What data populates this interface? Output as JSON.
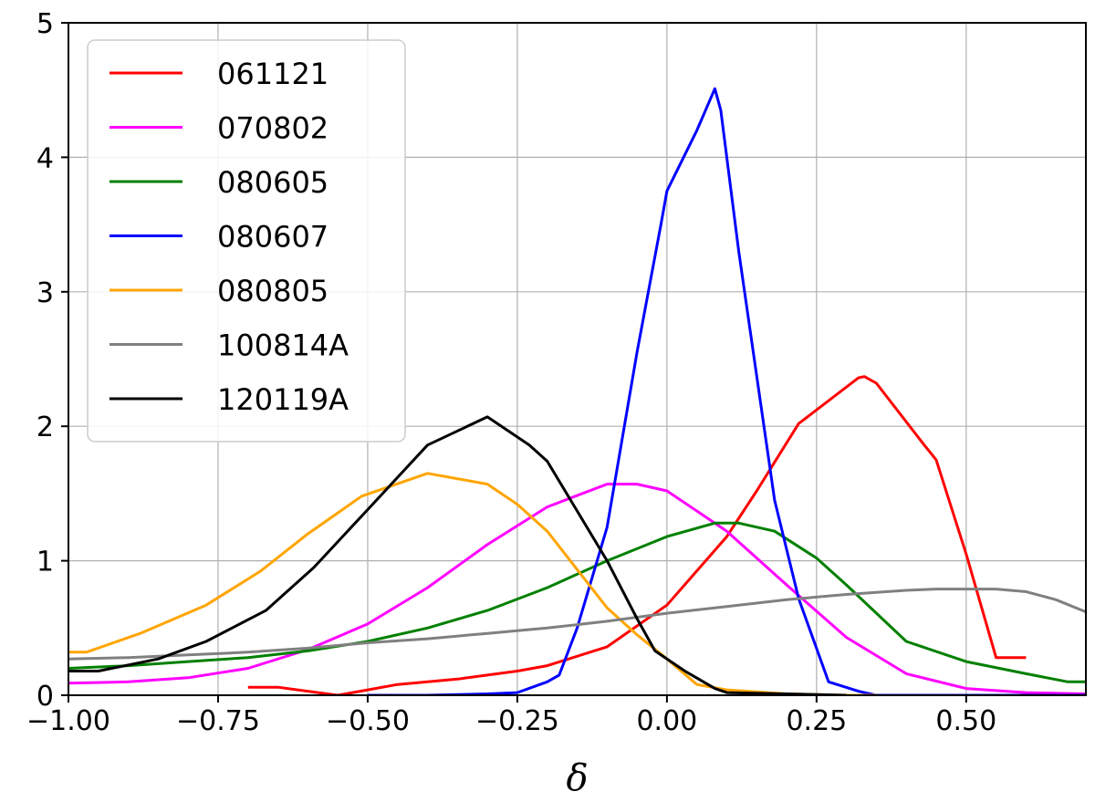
{
  "chart_data": {
    "type": "line",
    "title": "",
    "xlabel": "δ",
    "ylabel": "",
    "xlim": [
      -1.0,
      0.7
    ],
    "ylim": [
      0,
      5
    ],
    "grid": true,
    "legend_position": "top-left",
    "x_ticks": [
      "−1.00",
      "−0.75",
      "−0.50",
      "−0.25",
      "0.00",
      "0.25",
      "0.50"
    ],
    "y_ticks": [
      "0",
      "1",
      "2",
      "3",
      "4",
      "5"
    ],
    "series": [
      {
        "name": "061121",
        "color": "#ff0000",
        "x": [
          -0.7,
          -0.65,
          -0.6,
          -0.55,
          -0.5,
          -0.45,
          -0.4,
          -0.35,
          -0.3,
          -0.25,
          -0.2,
          -0.1,
          0.0,
          0.1,
          0.15,
          0.22,
          0.32,
          0.33,
          0.35,
          0.43,
          0.45,
          0.5,
          0.55,
          0.6
        ],
        "y": [
          0.06,
          0.06,
          0.03,
          0.0,
          0.04,
          0.08,
          0.1,
          0.12,
          0.15,
          0.18,
          0.22,
          0.36,
          0.67,
          1.18,
          1.52,
          2.02,
          2.36,
          2.37,
          2.32,
          1.86,
          1.75,
          1.05,
          0.28,
          0.28
        ]
      },
      {
        "name": "070802",
        "color": "#ff00ff",
        "x": [
          -1.0,
          -0.9,
          -0.8,
          -0.7,
          -0.6,
          -0.5,
          -0.4,
          -0.3,
          -0.2,
          -0.1,
          -0.05,
          0.0,
          0.1,
          0.2,
          0.3,
          0.4,
          0.5,
          0.6,
          0.7
        ],
        "y": [
          0.09,
          0.1,
          0.13,
          0.2,
          0.34,
          0.53,
          0.8,
          1.12,
          1.4,
          1.57,
          1.57,
          1.52,
          1.22,
          0.82,
          0.43,
          0.16,
          0.05,
          0.02,
          0.01
        ]
      },
      {
        "name": "080605",
        "color": "#008000",
        "x": [
          -1.0,
          -0.9,
          -0.8,
          -0.7,
          -0.6,
          -0.5,
          -0.4,
          -0.3,
          -0.2,
          -0.1,
          0.0,
          0.08,
          0.12,
          0.18,
          0.25,
          0.3,
          0.4,
          0.5,
          0.6,
          0.67,
          0.7
        ],
        "y": [
          0.2,
          0.22,
          0.25,
          0.28,
          0.33,
          0.4,
          0.5,
          0.63,
          0.8,
          1.0,
          1.18,
          1.28,
          1.28,
          1.22,
          1.02,
          0.82,
          0.4,
          0.25,
          0.16,
          0.1,
          0.1
        ]
      },
      {
        "name": "080607",
        "color": "#0000ff",
        "x": [
          -0.5,
          -0.4,
          -0.3,
          -0.25,
          -0.2,
          -0.18,
          -0.15,
          -0.12,
          -0.1,
          -0.05,
          -0.01,
          0.0,
          0.05,
          0.08,
          0.09,
          0.12,
          0.18,
          0.22,
          0.27,
          0.32,
          0.35,
          0.5,
          0.7
        ],
        "y": [
          0.0,
          0.0,
          0.01,
          0.02,
          0.1,
          0.15,
          0.5,
          0.95,
          1.25,
          2.55,
          3.5,
          3.75,
          4.2,
          4.51,
          4.35,
          3.3,
          1.45,
          0.72,
          0.1,
          0.03,
          0.0,
          0.0,
          0.0
        ]
      },
      {
        "name": "080805",
        "color": "#ffa500",
        "x": [
          -1.0,
          -0.97,
          -0.88,
          -0.77,
          -0.68,
          -0.6,
          -0.51,
          -0.4,
          -0.3,
          -0.25,
          -0.2,
          -0.1,
          -0.05,
          0.0,
          0.05,
          0.1,
          0.2,
          0.3,
          0.35
        ],
        "y": [
          0.32,
          0.32,
          0.46,
          0.67,
          0.92,
          1.2,
          1.48,
          1.65,
          1.57,
          1.42,
          1.22,
          0.65,
          0.45,
          0.27,
          0.08,
          0.04,
          0.01,
          0.0,
          0.0
        ]
      },
      {
        "name": "100814A",
        "color": "#808080",
        "x": [
          -1.0,
          -0.9,
          -0.8,
          -0.7,
          -0.6,
          -0.5,
          -0.4,
          -0.3,
          -0.2,
          -0.1,
          0.0,
          0.1,
          0.2,
          0.3,
          0.4,
          0.45,
          0.5,
          0.55,
          0.6,
          0.65,
          0.7
        ],
        "y": [
          0.27,
          0.28,
          0.3,
          0.32,
          0.35,
          0.39,
          0.42,
          0.46,
          0.5,
          0.55,
          0.61,
          0.66,
          0.71,
          0.75,
          0.78,
          0.79,
          0.79,
          0.79,
          0.77,
          0.71,
          0.62
        ]
      },
      {
        "name": "120119A",
        "color": "#000000",
        "x": [
          -1.0,
          -0.95,
          -0.85,
          -0.77,
          -0.67,
          -0.59,
          -0.5,
          -0.4,
          -0.3,
          -0.23,
          -0.2,
          -0.1,
          -0.05,
          -0.02,
          0.03,
          0.08,
          0.1,
          0.2,
          0.3
        ],
        "y": [
          0.18,
          0.18,
          0.27,
          0.4,
          0.63,
          0.95,
          1.38,
          1.86,
          2.07,
          1.86,
          1.74,
          1.0,
          0.57,
          0.33,
          0.18,
          0.05,
          0.02,
          0.01,
          0.0
        ]
      }
    ]
  }
}
